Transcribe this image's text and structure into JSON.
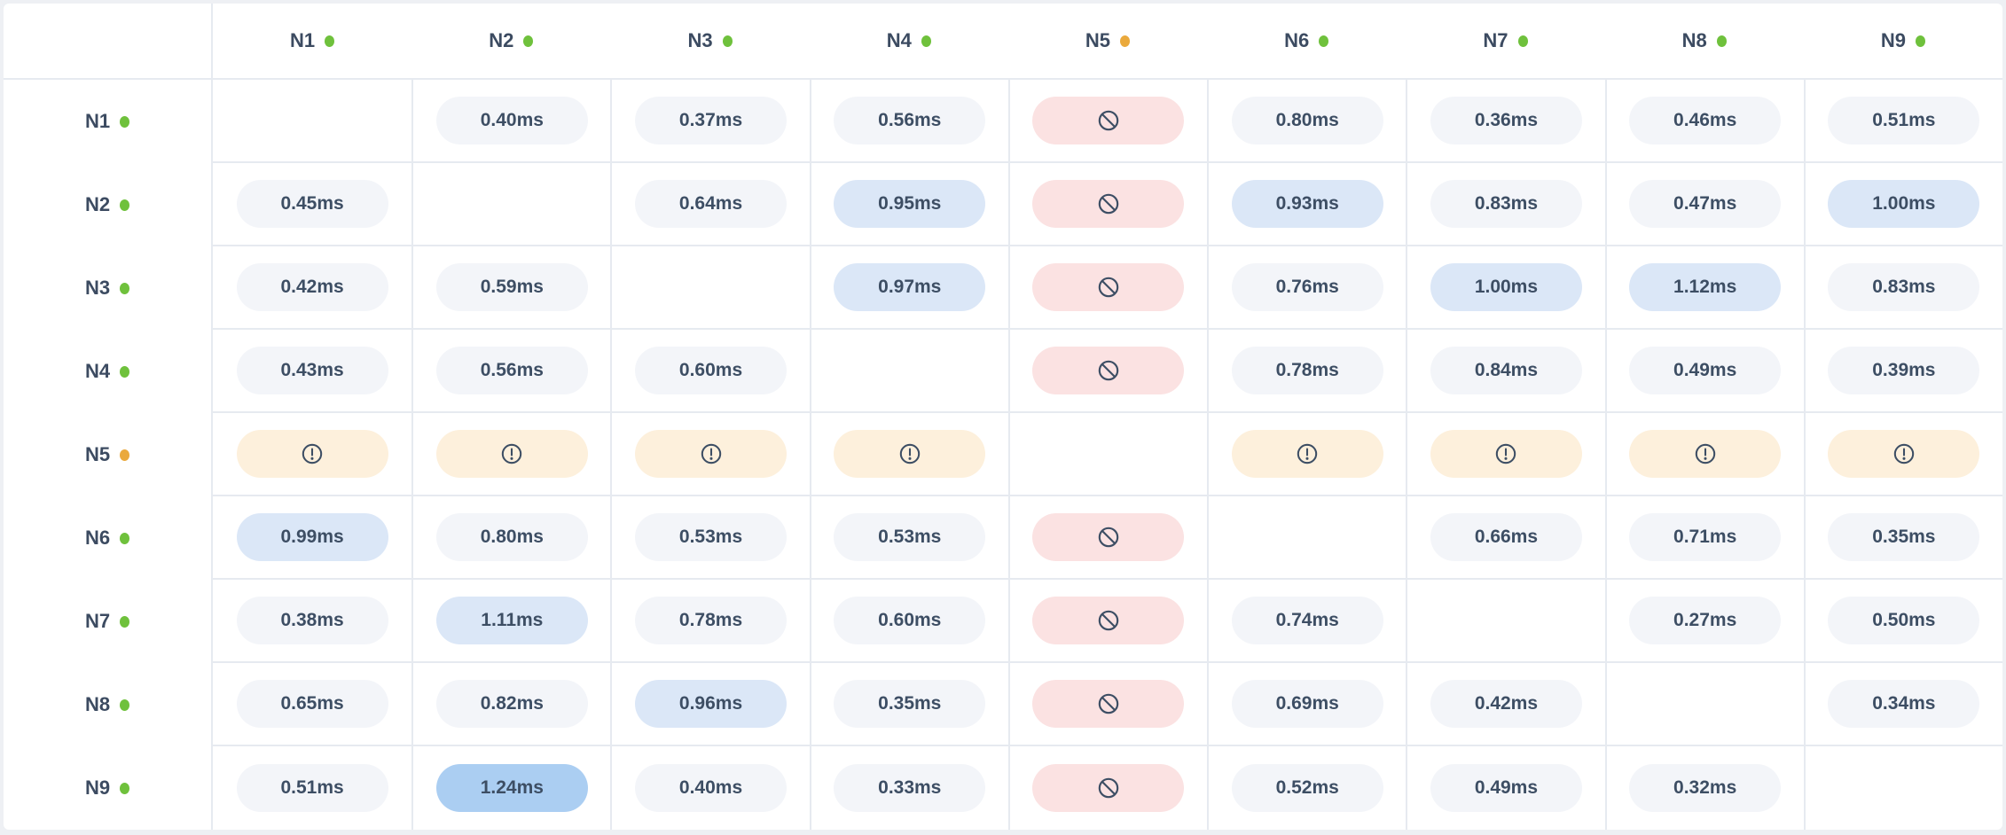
{
  "colors": {
    "grid_line": "#e6eaf0",
    "header_text": "#3c4b61",
    "cell_text": "#3d4e64",
    "page_background": "#eef0f4",
    "card_background": "#ffffff",
    "pill_base": "#f3f5f9",
    "pill_elevated": "#dbe7f7",
    "pill_peak": "#abcef2",
    "pill_blocked": "#fbe2e2",
    "pill_warning": "#fdf0dc",
    "status_ok": "#6fc13c",
    "status_warn": "#eaa93c"
  },
  "icons": {
    "blocked": "ban-icon",
    "warning": "alert-circle-icon",
    "status_ok": "status-dot-green",
    "status_warn": "status-dot-orange"
  },
  "matrix": {
    "columns": [
      {
        "id": "N1",
        "status": "ok"
      },
      {
        "id": "N2",
        "status": "ok"
      },
      {
        "id": "N3",
        "status": "ok"
      },
      {
        "id": "N4",
        "status": "ok"
      },
      {
        "id": "N5",
        "status": "warn"
      },
      {
        "id": "N6",
        "status": "ok"
      },
      {
        "id": "N7",
        "status": "ok"
      },
      {
        "id": "N8",
        "status": "ok"
      },
      {
        "id": "N9",
        "status": "ok"
      }
    ],
    "rows": [
      {
        "id": "N1",
        "status": "ok",
        "cells": [
          {
            "type": "self"
          },
          {
            "type": "latency",
            "label": "0.40ms",
            "style": "base"
          },
          {
            "type": "latency",
            "label": "0.37ms",
            "style": "base"
          },
          {
            "type": "latency",
            "label": "0.56ms",
            "style": "base"
          },
          {
            "type": "blocked"
          },
          {
            "type": "latency",
            "label": "0.80ms",
            "style": "base"
          },
          {
            "type": "latency",
            "label": "0.36ms",
            "style": "base"
          },
          {
            "type": "latency",
            "label": "0.46ms",
            "style": "base"
          },
          {
            "type": "latency",
            "label": "0.51ms",
            "style": "base"
          }
        ]
      },
      {
        "id": "N2",
        "status": "ok",
        "cells": [
          {
            "type": "latency",
            "label": "0.45ms",
            "style": "base"
          },
          {
            "type": "self"
          },
          {
            "type": "latency",
            "label": "0.64ms",
            "style": "base"
          },
          {
            "type": "latency",
            "label": "0.95ms",
            "style": "elevated"
          },
          {
            "type": "blocked"
          },
          {
            "type": "latency",
            "label": "0.93ms",
            "style": "elevated"
          },
          {
            "type": "latency",
            "label": "0.83ms",
            "style": "base"
          },
          {
            "type": "latency",
            "label": "0.47ms",
            "style": "base"
          },
          {
            "type": "latency",
            "label": "1.00ms",
            "style": "elevated"
          }
        ]
      },
      {
        "id": "N3",
        "status": "ok",
        "cells": [
          {
            "type": "latency",
            "label": "0.42ms",
            "style": "base"
          },
          {
            "type": "latency",
            "label": "0.59ms",
            "style": "base"
          },
          {
            "type": "self"
          },
          {
            "type": "latency",
            "label": "0.97ms",
            "style": "elevated"
          },
          {
            "type": "blocked"
          },
          {
            "type": "latency",
            "label": "0.76ms",
            "style": "base"
          },
          {
            "type": "latency",
            "label": "1.00ms",
            "style": "elevated"
          },
          {
            "type": "latency",
            "label": "1.12ms",
            "style": "elevated"
          },
          {
            "type": "latency",
            "label": "0.83ms",
            "style": "base"
          }
        ]
      },
      {
        "id": "N4",
        "status": "ok",
        "cells": [
          {
            "type": "latency",
            "label": "0.43ms",
            "style": "base"
          },
          {
            "type": "latency",
            "label": "0.56ms",
            "style": "base"
          },
          {
            "type": "latency",
            "label": "0.60ms",
            "style": "base"
          },
          {
            "type": "self"
          },
          {
            "type": "blocked"
          },
          {
            "type": "latency",
            "label": "0.78ms",
            "style": "base"
          },
          {
            "type": "latency",
            "label": "0.84ms",
            "style": "base"
          },
          {
            "type": "latency",
            "label": "0.49ms",
            "style": "base"
          },
          {
            "type": "latency",
            "label": "0.39ms",
            "style": "base"
          }
        ]
      },
      {
        "id": "N5",
        "status": "warn",
        "cells": [
          {
            "type": "warning"
          },
          {
            "type": "warning"
          },
          {
            "type": "warning"
          },
          {
            "type": "warning"
          },
          {
            "type": "self"
          },
          {
            "type": "warning"
          },
          {
            "type": "warning"
          },
          {
            "type": "warning"
          },
          {
            "type": "warning"
          }
        ]
      },
      {
        "id": "N6",
        "status": "ok",
        "cells": [
          {
            "type": "latency",
            "label": "0.99ms",
            "style": "elevated"
          },
          {
            "type": "latency",
            "label": "0.80ms",
            "style": "base"
          },
          {
            "type": "latency",
            "label": "0.53ms",
            "style": "base"
          },
          {
            "type": "latency",
            "label": "0.53ms",
            "style": "base"
          },
          {
            "type": "blocked"
          },
          {
            "type": "self"
          },
          {
            "type": "latency",
            "label": "0.66ms",
            "style": "base"
          },
          {
            "type": "latency",
            "label": "0.71ms",
            "style": "base"
          },
          {
            "type": "latency",
            "label": "0.35ms",
            "style": "base"
          }
        ]
      },
      {
        "id": "N7",
        "status": "ok",
        "cells": [
          {
            "type": "latency",
            "label": "0.38ms",
            "style": "base"
          },
          {
            "type": "latency",
            "label": "1.11ms",
            "style": "elevated"
          },
          {
            "type": "latency",
            "label": "0.78ms",
            "style": "base"
          },
          {
            "type": "latency",
            "label": "0.60ms",
            "style": "base"
          },
          {
            "type": "blocked"
          },
          {
            "type": "latency",
            "label": "0.74ms",
            "style": "base"
          },
          {
            "type": "self"
          },
          {
            "type": "latency",
            "label": "0.27ms",
            "style": "base"
          },
          {
            "type": "latency",
            "label": "0.50ms",
            "style": "base"
          }
        ]
      },
      {
        "id": "N8",
        "status": "ok",
        "cells": [
          {
            "type": "latency",
            "label": "0.65ms",
            "style": "base"
          },
          {
            "type": "latency",
            "label": "0.82ms",
            "style": "base"
          },
          {
            "type": "latency",
            "label": "0.96ms",
            "style": "elevated"
          },
          {
            "type": "latency",
            "label": "0.35ms",
            "style": "base"
          },
          {
            "type": "blocked"
          },
          {
            "type": "latency",
            "label": "0.69ms",
            "style": "base"
          },
          {
            "type": "latency",
            "label": "0.42ms",
            "style": "base"
          },
          {
            "type": "self"
          },
          {
            "type": "latency",
            "label": "0.34ms",
            "style": "base"
          }
        ]
      },
      {
        "id": "N9",
        "status": "ok",
        "cells": [
          {
            "type": "latency",
            "label": "0.51ms",
            "style": "base"
          },
          {
            "type": "latency",
            "label": "1.24ms",
            "style": "peak"
          },
          {
            "type": "latency",
            "label": "0.40ms",
            "style": "base"
          },
          {
            "type": "latency",
            "label": "0.33ms",
            "style": "base"
          },
          {
            "type": "blocked"
          },
          {
            "type": "latency",
            "label": "0.52ms",
            "style": "base"
          },
          {
            "type": "latency",
            "label": "0.49ms",
            "style": "base"
          },
          {
            "type": "latency",
            "label": "0.32ms",
            "style": "base"
          },
          {
            "type": "self"
          }
        ]
      }
    ]
  }
}
